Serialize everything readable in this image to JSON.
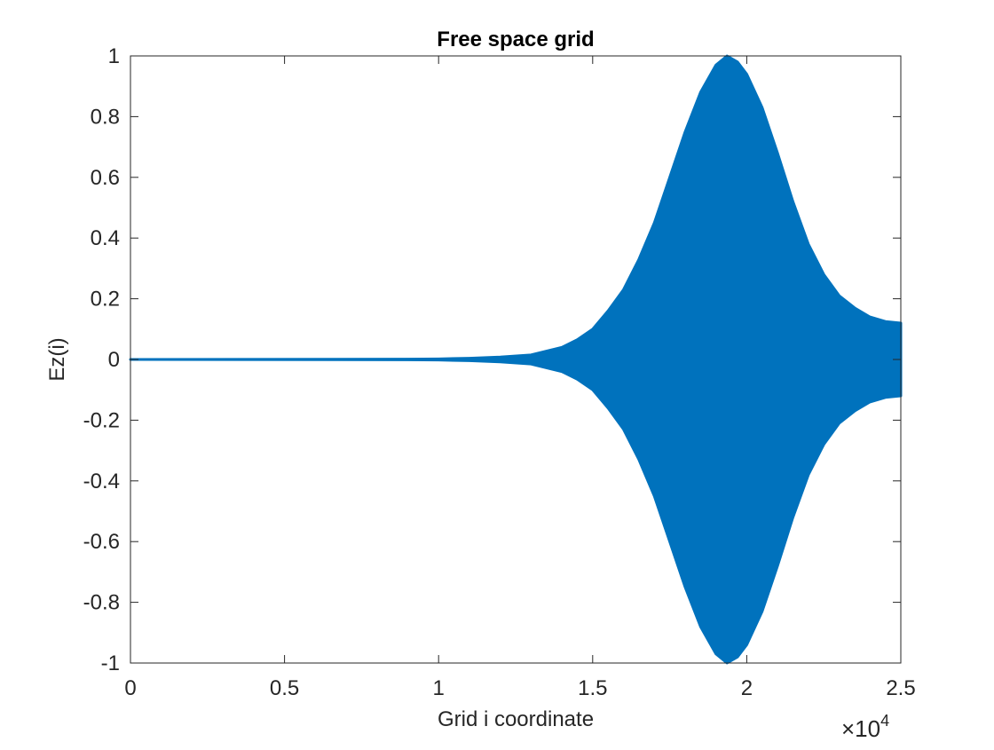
{
  "chart_data": {
    "type": "area",
    "title": "Free space grid",
    "xlabel": "Grid i coordinate",
    "ylabel": "Ez(i)",
    "xlim": [
      0,
      25000
    ],
    "ylim": [
      -1,
      1
    ],
    "x_tick_labels": [
      "0",
      "0.5",
      "1",
      "1.5",
      "2",
      "2.5"
    ],
    "y_tick_labels": [
      "1",
      "0.8",
      "0.6",
      "0.4",
      "0.2",
      "0",
      "-0.2",
      "-0.4",
      "-0.6",
      "-0.8",
      "-1"
    ],
    "x_exponent_base": "×10",
    "x_exponent_power": "4",
    "grid": false,
    "series": [
      {
        "color": "#0072BD",
        "style": "rapidly oscillating signal drawn as filled envelope",
        "envelope_x": [
          0,
          9000,
          10000,
          11000,
          12000,
          13000,
          14000,
          14500,
          15000,
          15500,
          16000,
          16500,
          17000,
          17500,
          18000,
          18500,
          19000,
          19360,
          19700,
          20000,
          20500,
          21000,
          21500,
          22000,
          22500,
          23000,
          23500,
          24000,
          24500,
          25000
        ],
        "envelope_y": [
          0,
          0.001,
          0.002,
          0.004,
          0.008,
          0.015,
          0.04,
          0.065,
          0.1,
          0.16,
          0.23,
          0.33,
          0.45,
          0.6,
          0.75,
          0.88,
          0.97,
          1.0,
          0.98,
          0.94,
          0.83,
          0.68,
          0.52,
          0.38,
          0.28,
          0.21,
          0.17,
          0.14,
          0.125,
          0.12
        ]
      }
    ]
  }
}
